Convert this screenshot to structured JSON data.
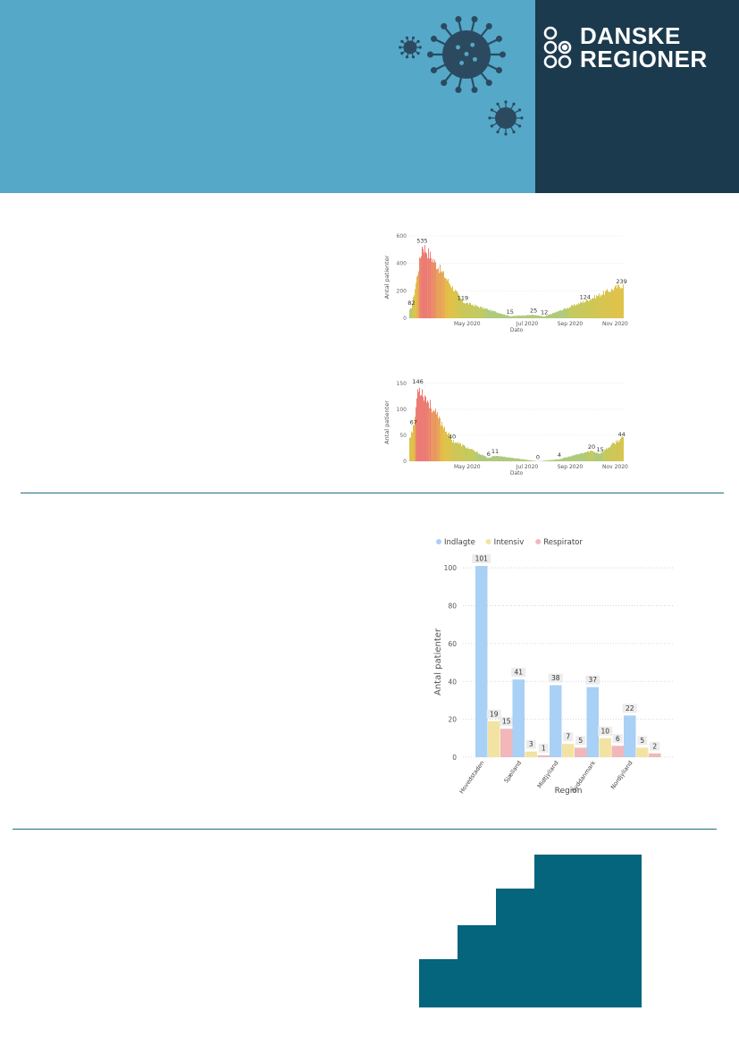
{
  "logo": {
    "line1": "DANSKE",
    "line2": "REGIONER"
  },
  "colors": {
    "header_band": "#55a8c7",
    "logo_panel": "#1c3a4e",
    "virus_fill": "#2b4a60",
    "stairs": "#04657c",
    "rule": "#1f6d80",
    "series_indlagte": "#a9d0f5",
    "series_intensiv": "#f3e3a2",
    "series_respirator": "#f1b7bb"
  },
  "icons": [
    "coronavirus-icon",
    "danske-regioner-logo-icon"
  ],
  "chart_data": [
    {
      "type": "bar",
      "ylabel": "Antal patienter",
      "xlabel": "Dato",
      "ylim": [
        0,
        600
      ],
      "yticks": [
        0,
        200,
        400,
        600
      ],
      "x_tick_labels": [
        "May 2020",
        "Jul 2020",
        "Sep 2020",
        "Nov 2020"
      ],
      "color_scale": "value: high red, mid yellow, low green",
      "points": [
        {
          "label": "82",
          "value": 82,
          "pos": 0.01
        },
        {
          "label": "535",
          "value": 535,
          "pos": 0.06
        },
        {
          "label": "119",
          "value": 119,
          "pos": 0.25
        },
        {
          "label": "15",
          "value": 15,
          "pos": 0.47
        },
        {
          "label": "25",
          "value": 25,
          "pos": 0.58
        },
        {
          "label": "12",
          "value": 12,
          "pos": 0.63
        },
        {
          "label": "124",
          "value": 124,
          "pos": 0.82
        },
        {
          "label": "239",
          "value": 239,
          "pos": 0.99
        }
      ],
      "grid": true
    },
    {
      "type": "bar",
      "ylabel": "Antal patienter",
      "xlabel": "Dato",
      "ylim": [
        0,
        150
      ],
      "yticks": [
        0,
        50,
        100,
        150
      ],
      "x_tick_labels": [
        "May 2020",
        "Jul 2020",
        "Sep 2020",
        "Nov 2020"
      ],
      "color_scale": "value: high red, mid yellow, low green",
      "points": [
        {
          "label": "67",
          "value": 67,
          "pos": 0.02
        },
        {
          "label": "146",
          "value": 146,
          "pos": 0.04
        },
        {
          "label": "40",
          "value": 40,
          "pos": 0.2
        },
        {
          "label": "6",
          "value": 6,
          "pos": 0.37
        },
        {
          "label": "11",
          "value": 11,
          "pos": 0.4
        },
        {
          "label": "0",
          "value": 0,
          "pos": 0.6
        },
        {
          "label": "4",
          "value": 4,
          "pos": 0.7
        },
        {
          "label": "20",
          "value": 20,
          "pos": 0.85
        },
        {
          "label": "15",
          "value": 15,
          "pos": 0.89
        },
        {
          "label": "44",
          "value": 44,
          "pos": 0.99
        }
      ],
      "grid": true
    },
    {
      "type": "bar",
      "xlabel": "Region",
      "ylabel": "Antal patienter",
      "ylim": [
        0,
        110
      ],
      "yticks": [
        0,
        20,
        40,
        60,
        80,
        100
      ],
      "legend_placement": "top",
      "categories": [
        "Hovedstaden",
        "Sjælland",
        "Midtjylland",
        "Syddanmark",
        "Nordjylland"
      ],
      "series": [
        {
          "name": "Indlagte",
          "values": [
            101,
            41,
            38,
            37,
            22
          ]
        },
        {
          "name": "Intensiv",
          "values": [
            19,
            3,
            7,
            10,
            5
          ]
        },
        {
          "name": "Respirator",
          "values": [
            15,
            1,
            5,
            6,
            2
          ]
        }
      ],
      "grid": true
    }
  ]
}
